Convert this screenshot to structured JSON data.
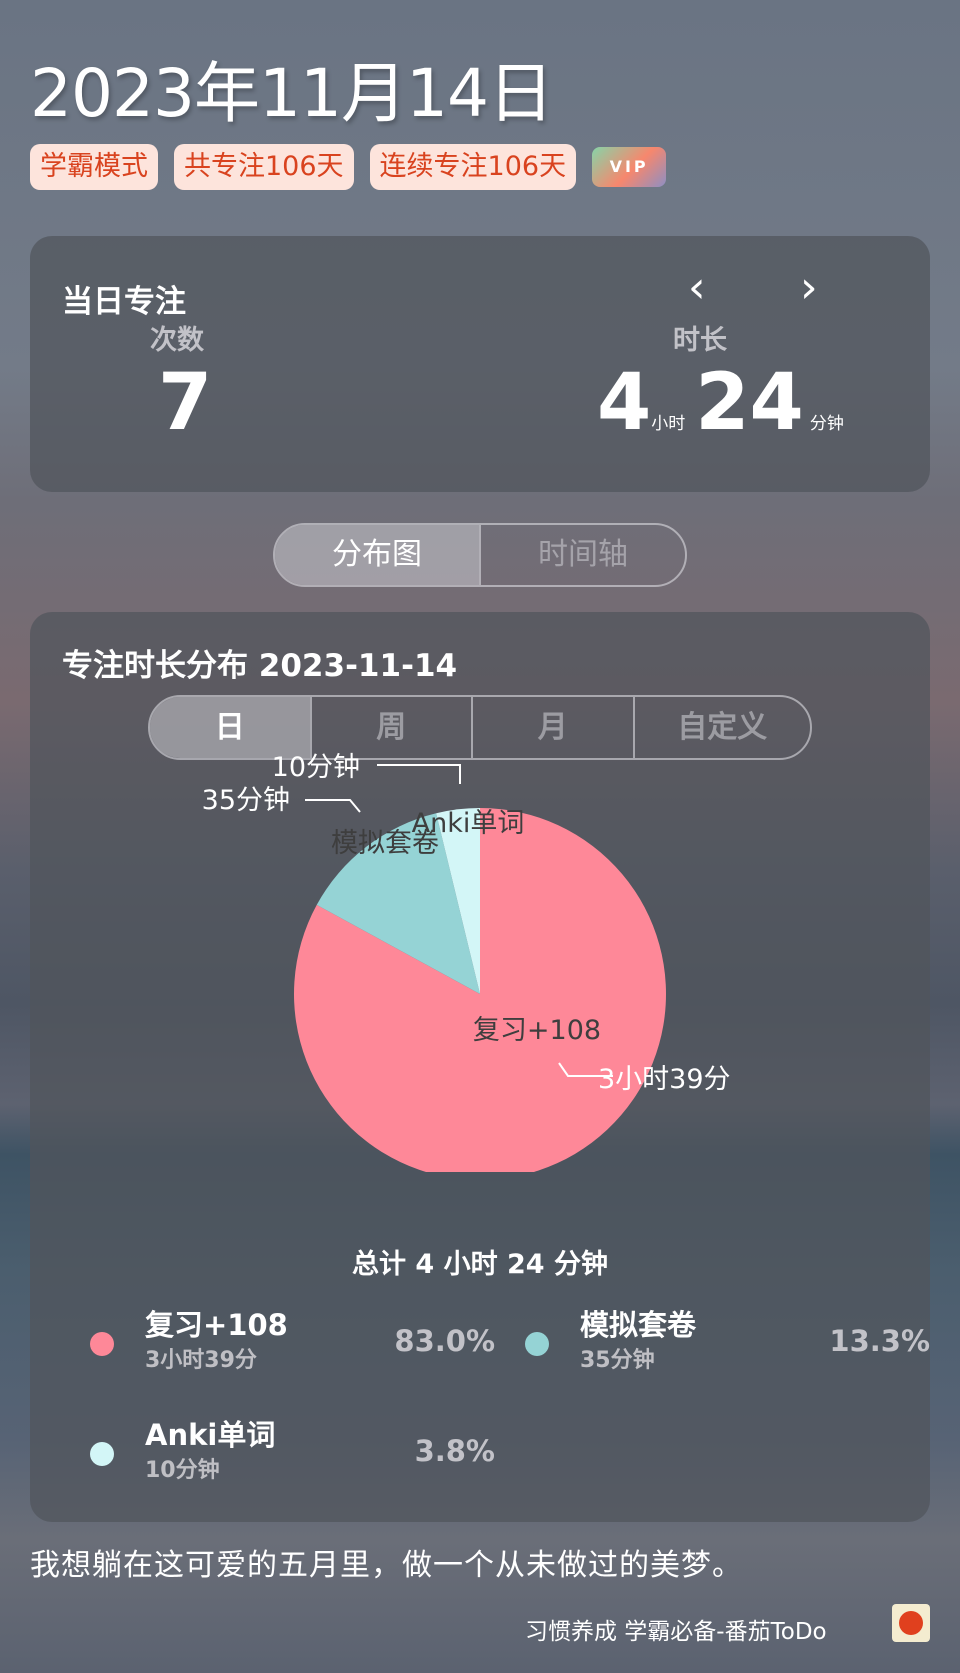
{
  "header": {
    "date": "2023年11月14日",
    "tags": [
      "学霸模式",
      "共专注106天",
      "连续专注106天"
    ],
    "vip": "VIP"
  },
  "daily": {
    "title": "当日专注",
    "count_label": "次数",
    "count": "7",
    "duration_label": "时长",
    "hours": "4",
    "hours_unit": "小时",
    "minutes": "24",
    "minutes_unit": "分钟"
  },
  "view_toggle": {
    "options": [
      "分布图",
      "时间轴"
    ],
    "selected": "分布图"
  },
  "distribution": {
    "title": "专注时长分布  2023-11-14",
    "periods": [
      "日",
      "周",
      "月",
      "自定义"
    ],
    "selected_period": "日",
    "total": "总计 4 小时 24 分钟"
  },
  "chart_data": {
    "type": "pie",
    "start": "top",
    "direction": "clockwise",
    "slices": [
      {
        "name": "复习+108",
        "minutes": 219,
        "duration": "3小时39分",
        "percent": "83.0%",
        "color": "#fe8898"
      },
      {
        "name": "模拟套卷",
        "minutes": 35,
        "duration": "35分钟",
        "percent": "13.3%",
        "color": "#95d3d5"
      },
      {
        "name": "Anki单词",
        "minutes": 10,
        "duration": "10分钟",
        "percent": "3.8%",
        "color": "#d3f6f7"
      }
    ]
  },
  "quote": "我想躺在这可爱的五月里，做一个从未做过的美梦。",
  "footer": "习惯养成 学霸必备-番茄ToDo"
}
